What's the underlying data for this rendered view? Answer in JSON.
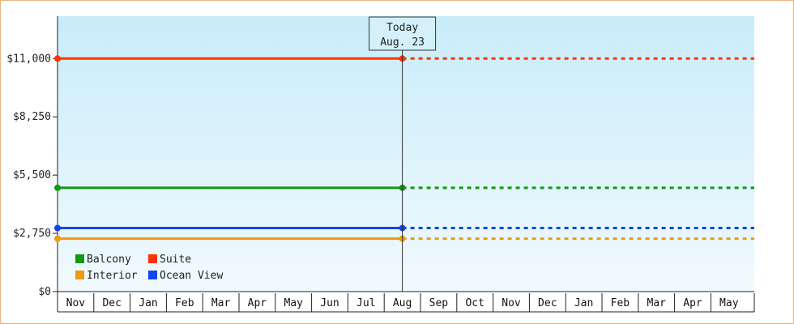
{
  "chart_data": {
    "type": "line",
    "title": "",
    "xlabel": "",
    "ylabel": "",
    "ylim": [
      0,
      13000
    ],
    "y_ticks": [
      0,
      2750,
      5500,
      8250,
      11000
    ],
    "y_tick_labels": [
      "$0",
      "$2,750",
      "$5,500",
      "$8,250",
      "$11,000"
    ],
    "months": [
      "Nov",
      "Dec",
      "Jan",
      "Feb",
      "Mar",
      "Apr",
      "May",
      "Jun",
      "Jul",
      "Aug",
      "Sep",
      "Oct",
      "Nov",
      "Dec",
      "Jan",
      "Feb",
      "Mar",
      "Apr",
      "May"
    ],
    "today_index": 9.5,
    "today_label": [
      "Today",
      "Aug. 23"
    ],
    "series": [
      {
        "name": "Suite",
        "color": "#ff3300",
        "value": 11000,
        "start_index": 0
      },
      {
        "name": "Balcony",
        "color": "#119911",
        "value": 4900,
        "start_index": 0
      },
      {
        "name": "Ocean View",
        "color": "#1144ee",
        "value": 3000,
        "start_index": 0
      },
      {
        "name": "Interior",
        "color": "#ee9911",
        "value": 2500,
        "start_index": 0
      }
    ],
    "legend": {
      "placement": "bottom-left",
      "rows": [
        [
          "Balcony",
          "Suite"
        ],
        [
          "Interior",
          "Ocean View"
        ]
      ]
    },
    "grid": false,
    "background_gradient": [
      "#c9ecfa",
      "#f1fafe"
    ]
  }
}
